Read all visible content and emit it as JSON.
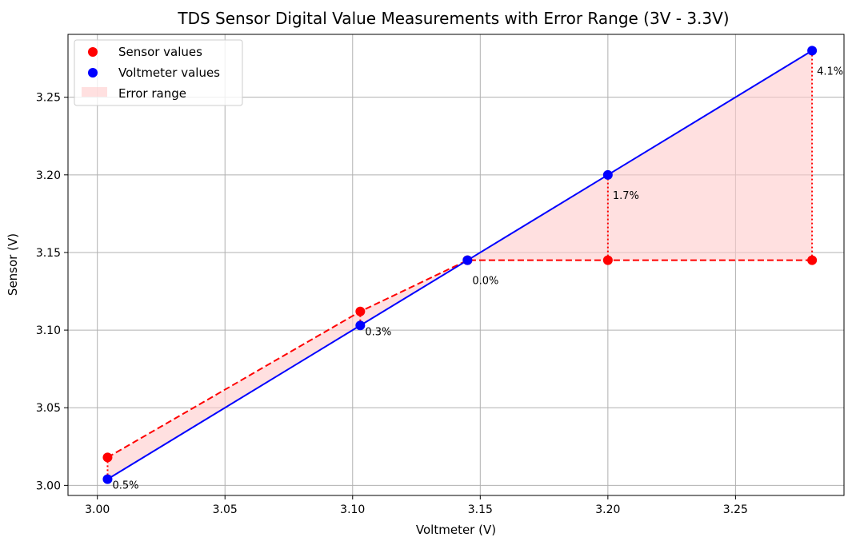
{
  "chart_data": {
    "type": "line",
    "title": "TDS Sensor Digital Value Measurements with Error Range (3V - 3.3V)",
    "xlabel": "Voltmeter (V)",
    "ylabel": "Sensor (V)",
    "xlim": [
      2.9885,
      3.2925
    ],
    "ylim": [
      2.9935,
      3.2905
    ],
    "xticks": [
      3.0,
      3.05,
      3.1,
      3.15,
      3.2,
      3.25
    ],
    "yticks": [
      3.0,
      3.05,
      3.1,
      3.15,
      3.2,
      3.25
    ],
    "xtick_labels": [
      "3.00",
      "3.05",
      "3.10",
      "3.15",
      "3.20",
      "3.25"
    ],
    "ytick_labels": [
      "3.00",
      "3.05",
      "3.10",
      "3.15",
      "3.20",
      "3.25"
    ],
    "grid": true,
    "legend_position": "top-left",
    "x": [
      3.004,
      3.103,
      3.145,
      3.2,
      3.28
    ],
    "series": [
      {
        "name": "Sensor values",
        "values": [
          3.018,
          3.112,
          3.145,
          3.145,
          3.145
        ],
        "color": "#ff0000",
        "line": "dashed"
      },
      {
        "name": "Voltmeter values",
        "values": [
          3.004,
          3.103,
          3.145,
          3.2,
          3.28
        ],
        "color": "#0000ff",
        "line": "solid"
      }
    ],
    "error_range": {
      "name": "Error range",
      "color": "#ffcccc"
    },
    "annotations": [
      "0.5%",
      "0.3%",
      "0.0%",
      "1.7%",
      "4.1%"
    ]
  }
}
